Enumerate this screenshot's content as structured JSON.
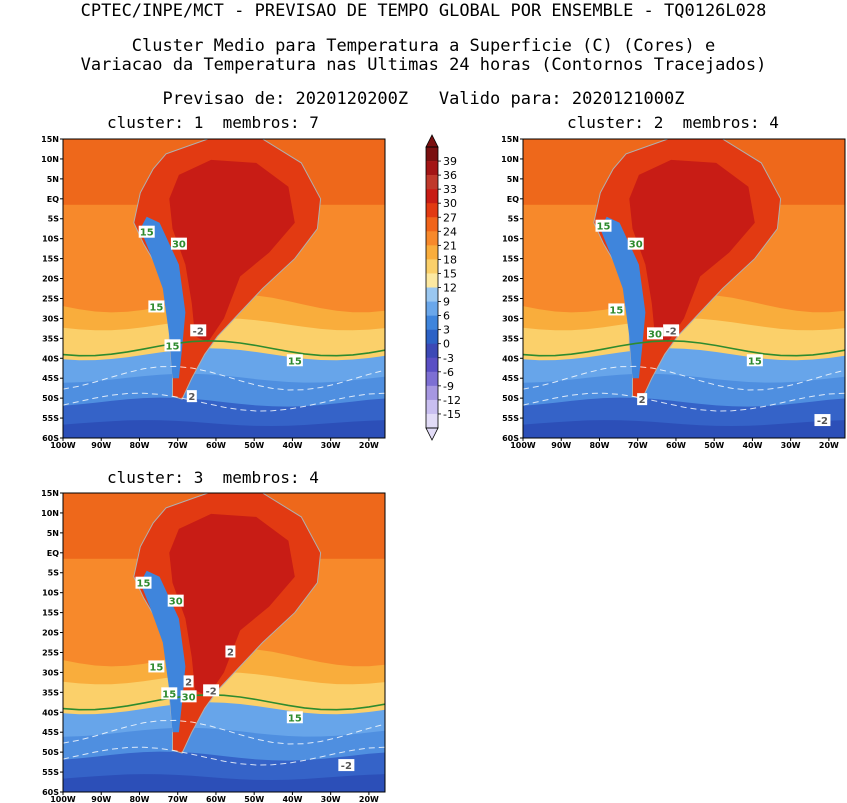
{
  "header": {
    "line1": "CPTEC/INPE/MCT - PREVISAO DE TEMPO GLOBAL POR ENSEMBLE - TQ0126L028",
    "line2": "Cluster Medio para Temperatura a Superficie (C) (Cores) e",
    "line3": "Variacao da Temperatura nas Ultimas 24 horas (Contornos Tracejados)",
    "line4": "Previsao de: 2020120200Z   Valido para: 2020121000Z"
  },
  "panels": [
    {
      "label": "cluster: 1  membros: 7",
      "contour_labels": [
        "15",
        "30",
        "15",
        "15",
        "-2",
        "15",
        "2"
      ]
    },
    {
      "label": "cluster: 2  membros: 4",
      "contour_labels": [
        "15",
        "30",
        "15",
        "-2",
        "30",
        "15",
        "2",
        "-2"
      ]
    },
    {
      "label": "cluster: 3  membros: 4",
      "contour_labels": [
        "15",
        "30",
        "15",
        "2",
        "-2",
        "2",
        "30",
        "15",
        "15",
        "-2"
      ]
    }
  ],
  "axes": {
    "lat_ticks": [
      "15N",
      "10N",
      "5N",
      "EQ",
      "5S",
      "10S",
      "15S",
      "20S",
      "25S",
      "30S",
      "35S",
      "40S",
      "45S",
      "50S",
      "55S",
      "60S"
    ],
    "lon_ticks": [
      "100W",
      "90W",
      "80W",
      "70W",
      "60W",
      "50W",
      "40W",
      "30W",
      "20W"
    ]
  },
  "colorbar": {
    "labels": [
      "39",
      "36",
      "33",
      "30",
      "27",
      "24",
      "21",
      "18",
      "15",
      "12",
      "9",
      "6",
      "3",
      "0",
      "-3",
      "-6",
      "-9",
      "-12",
      "-15"
    ],
    "colors": [
      "#7a1010",
      "#a31515",
      "#c0392b",
      "#c81c15",
      "#e23a12",
      "#f0641a",
      "#f7892b",
      "#f9ad3c",
      "#fbd06a",
      "#fde9a1",
      "#9ac7f0",
      "#6aa7ea",
      "#3f85dc",
      "#2c62c6",
      "#3c49b6",
      "#5a4fc4",
      "#7d6fd3",
      "#a697e1",
      "#c9bff0",
      "#e2dcf7"
    ]
  },
  "colors": {
    "ocean_south": "#3563c8",
    "ocean_mid": "#67a5ea",
    "ocean_warm": "#f7892b",
    "land_hot": "#c81c15",
    "contour_15": "#2e8b2e"
  }
}
